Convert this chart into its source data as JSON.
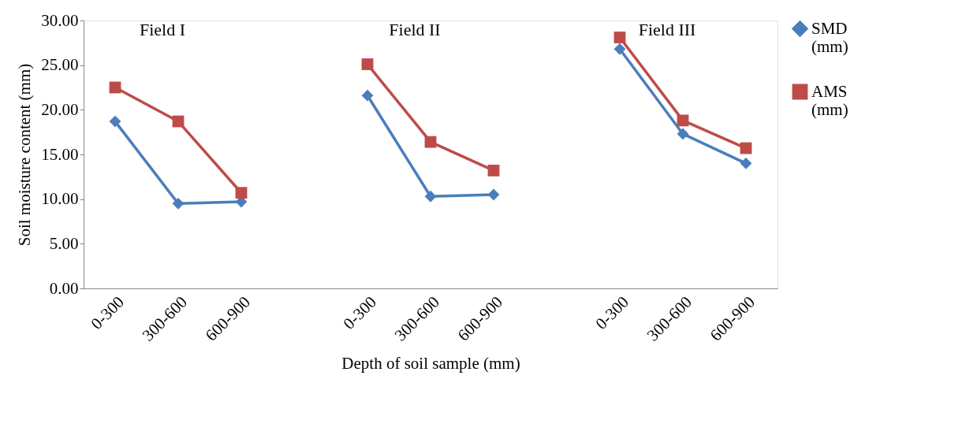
{
  "chart_data": {
    "type": "line",
    "xlabel": "Depth of soil sample (mm)",
    "ylabel": "Soil moisture content (mm)",
    "categories": [
      "0-300",
      "300-600",
      "600-900",
      null,
      "0-300",
      "300-600",
      "600-900",
      null,
      "0-300",
      "300-600",
      "600-900"
    ],
    "series": [
      {
        "name": "SMD (mm)",
        "color": "#4a7ebb",
        "marker": "diamond",
        "values": [
          18.7,
          9.5,
          9.7,
          null,
          21.6,
          10.3,
          10.5,
          null,
          26.8,
          17.3,
          14.0
        ]
      },
      {
        "name": "AMS (mm)",
        "color": "#be4b48",
        "marker": "square",
        "values": [
          22.5,
          18.7,
          10.7,
          null,
          25.1,
          16.4,
          13.2,
          null,
          28.1,
          18.8,
          15.7
        ]
      }
    ],
    "ylim": [
      0,
      30
    ],
    "yticks": [
      {
        "value": 0,
        "label": "0.00"
      },
      {
        "value": 5,
        "label": "5.00"
      },
      {
        "value": 10,
        "label": "10.00"
      },
      {
        "value": 15,
        "label": "15.00"
      },
      {
        "value": 20,
        "label": "20.00"
      },
      {
        "value": 25,
        "label": "25.00"
      },
      {
        "value": 30,
        "label": "30.00"
      }
    ],
    "annotations": [
      "Field I",
      "Field II",
      "Field III"
    ],
    "grid": false,
    "legend": "right",
    "line_style": "solid"
  }
}
